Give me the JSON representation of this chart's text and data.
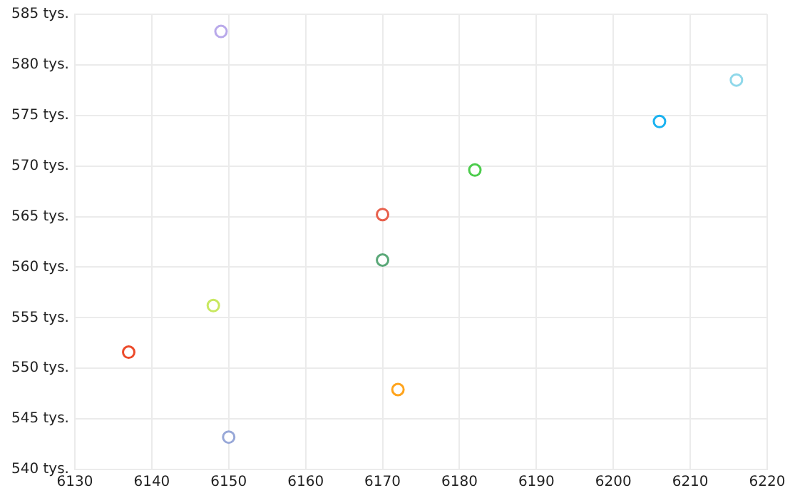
{
  "chart_data": {
    "type": "scatter",
    "marker": "circle",
    "grid": true,
    "legend": false,
    "x": [
      6149,
      6216,
      6206,
      6182,
      6170,
      6170,
      6148,
      6137,
      6172,
      6150
    ],
    "values": [
      583.3,
      578.5,
      574.4,
      569.6,
      565.2,
      560.7,
      556.2,
      551.6,
      547.9,
      543.2
    ],
    "colors": [
      "#b9a9ea",
      "#8fd8ea",
      "#1ab2f0",
      "#4ccc4c",
      "#e8604c",
      "#5aa878",
      "#c8e860",
      "#ec4a2a",
      "#ffa41c",
      "#98a8d8"
    ],
    "xlim": [
      6130,
      6220
    ],
    "xticks": [
      6130,
      6140,
      6150,
      6160,
      6170,
      6180,
      6190,
      6200,
      6210,
      6220
    ],
    "ylim": [
      540,
      585
    ],
    "yticks": [
      {
        "value": 540,
        "label": "540 tys."
      },
      {
        "value": 545,
        "label": "545 tys."
      },
      {
        "value": 550,
        "label": "550 tys."
      },
      {
        "value": 555,
        "label": "555 tys."
      },
      {
        "value": 560,
        "label": "560 tys."
      },
      {
        "value": 565,
        "label": "565 tys."
      },
      {
        "value": 570,
        "label": "570 tys."
      },
      {
        "value": 575,
        "label": "575 tys."
      },
      {
        "value": 580,
        "label": "580 tys."
      },
      {
        "value": 585,
        "label": "585 tys."
      }
    ]
  }
}
